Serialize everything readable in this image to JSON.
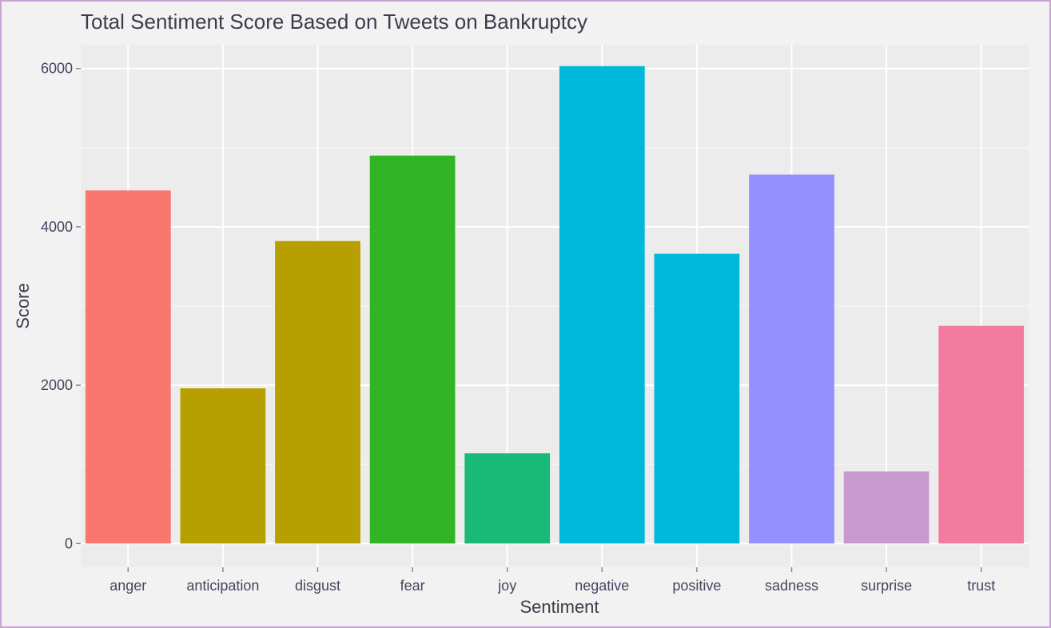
{
  "chart_data": {
    "type": "bar",
    "title": "Total Sentiment Score Based on Tweets on Bankruptcy",
    "xlabel": "Sentiment",
    "ylabel": "Score",
    "categories": [
      "anger",
      "anticipation",
      "disgust",
      "fear",
      "joy",
      "negative",
      "positive",
      "sadness",
      "surprise",
      "trust"
    ],
    "values": [
      4460,
      1960,
      3820,
      4900,
      1140,
      6030,
      3660,
      4660,
      910,
      2750
    ],
    "colors": [
      "#F8766D",
      "#B79F00",
      "#B79F00",
      "#31B425",
      "#19BA79",
      "#00B8D9",
      "#00B8D9",
      "#9590FF",
      "#C79ACF",
      "#F37B9F"
    ],
    "yticks": [
      0,
      2000,
      4000,
      6000
    ],
    "ylim": [
      -300,
      6300
    ],
    "grid": true,
    "legend": "none"
  }
}
